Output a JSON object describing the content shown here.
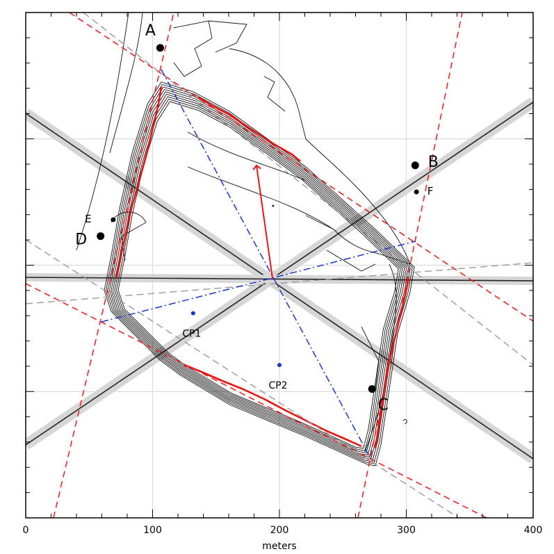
{
  "axes": {
    "x_range": [
      0,
      400
    ],
    "x_ticks": [
      "0",
      "100",
      "200",
      "300",
      "400"
    ],
    "x_label": "meters",
    "grid": true
  },
  "points": [
    {
      "label": "A",
      "x": 106,
      "y": 372
    },
    {
      "label": "B",
      "x": 307,
      "y": 279
    },
    {
      "label": "C",
      "x": 273,
      "y": 102
    },
    {
      "label": "D",
      "x": 59,
      "y": 223
    },
    {
      "label": "E",
      "x": 69,
      "y": 236
    },
    {
      "label": "F",
      "x": 308,
      "y": 258
    }
  ],
  "control_points": [
    {
      "label": "CP1",
      "x": 132,
      "y": 162
    },
    {
      "label": "CP2",
      "x": 200,
      "y": 121
    }
  ],
  "center": {
    "x": 195,
    "y": 247
  },
  "direction_arrow_tip": {
    "x": 181,
    "y": 330
  },
  "colors": {
    "contour": "#111111",
    "ridge": "#ee1111",
    "dashed_fit": "#ee2222",
    "gray_fit": "#999999",
    "diagonal": "#1a33cc",
    "grid": "#dcdcdc",
    "band": "#c8c8c8"
  }
}
